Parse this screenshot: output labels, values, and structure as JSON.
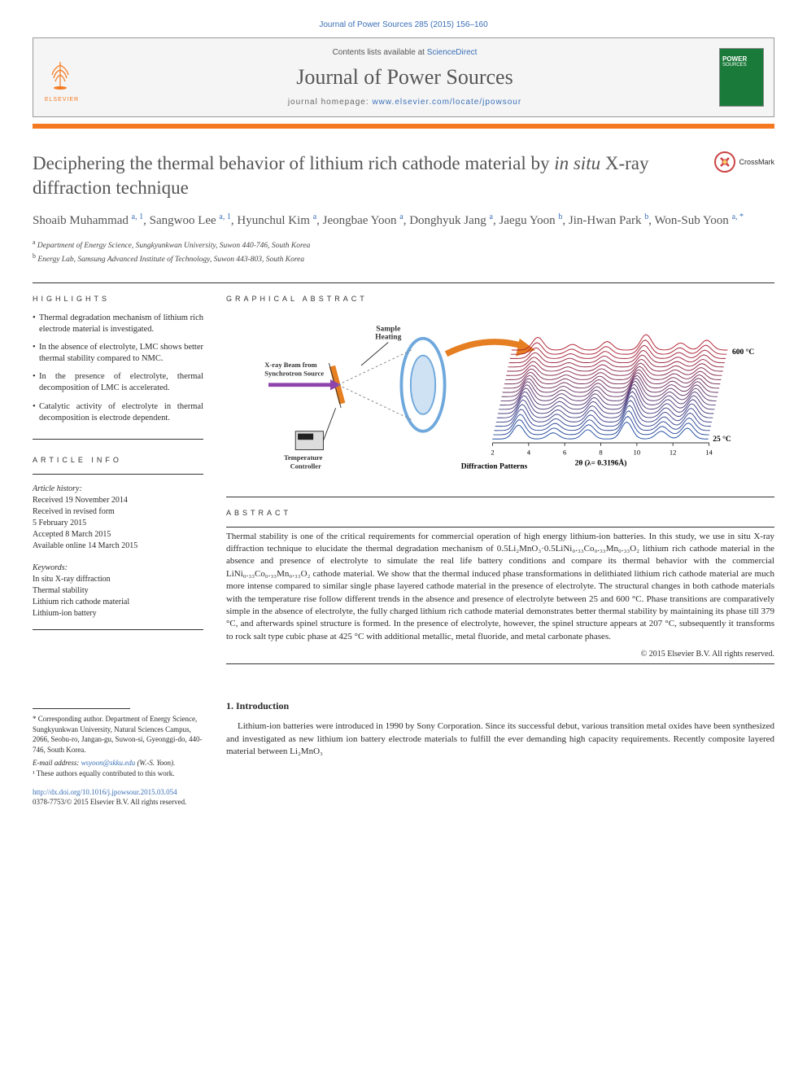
{
  "header": {
    "journal_ref": "Journal of Power Sources 285 (2015) 156–160",
    "contents_avail": "Contents lists available at ",
    "sciencedirect": "ScienceDirect",
    "journal_title": "Journal of Power Sources",
    "homepage_label": "journal homepage: ",
    "homepage_url": "www.elsevier.com/locate/jpowsour",
    "elsevier": "ELSEVIER",
    "cover_label_top": "POWER",
    "cover_label_bottom": "SOURCES"
  },
  "crossmark": "CrossMark",
  "title_pre": "Deciphering the thermal behavior of lithium rich cathode material by ",
  "title_italic": "in situ",
  "title_post": " X-ray diffraction technique",
  "authors_html": "Shoaib Muhammad <sup>a, 1</sup>, Sangwoo Lee <sup>a, 1</sup>, Hyunchul Kim <sup>a</sup>, Jeongbae Yoon <sup>a</sup>, Donghyuk Jang <sup>a</sup>, Jaegu Yoon <sup>b</sup>, Jin-Hwan Park <sup>b</sup>, Won-Sub Yoon <sup>a, *</sup>",
  "affiliations": [
    "a Department of Energy Science, Sungkyunkwan University, Suwon 440-746, South Korea",
    "b Energy Lab, Samsung Advanced Institute of Technology, Suwon 443-803, South Korea"
  ],
  "highlights_header": "HIGHLIGHTS",
  "highlights": [
    "Thermal degradation mechanism of lithium rich electrode material is investigated.",
    "In the absence of electrolyte, LMC shows better thermal stability compared to NMC.",
    "In the presence of electrolyte, thermal decomposition of LMC is accelerated.",
    "Catalytic activity of electrolyte in thermal decomposition is electrode dependent."
  ],
  "ga_header": "GRAPHICAL ABSTRACT",
  "ga": {
    "labels": {
      "sample": "Sample Heating",
      "xray": "X-ray Beam from Synchrotron Source",
      "temp": "Temperature Controller",
      "diff": "Diffraction Patterns",
      "xaxis": "2θ (λ= 0.3196Å)",
      "t_high": "600 °C",
      "t_low": "25 °C"
    },
    "xticks": [
      "2",
      "4",
      "6",
      "8",
      "10",
      "12",
      "14"
    ],
    "colors": {
      "ellipse_outer": "#6fa8dc",
      "ellipse_inner": "#cfe2f3",
      "beam": "#8e44ad",
      "sample": "#e67e22",
      "arrow": "#e67e22",
      "pattern_low": "#1f4aa0",
      "pattern_high": "#b01e2e"
    }
  },
  "article_info_header": "ARTICLE INFO",
  "article_info": {
    "history_label": "Article history:",
    "lines": [
      "Received 19 November 2014",
      "Received in revised form",
      "5 February 2015",
      "Accepted 8 March 2015",
      "Available online 14 March 2015"
    ],
    "keywords_label": "Keywords:",
    "keywords": [
      "In situ X-ray diffraction",
      "Thermal stability",
      "Lithium rich cathode material",
      "Lithium-ion battery"
    ]
  },
  "abstract_header": "ABSTRACT",
  "abstract": "Thermal stability is one of the critical requirements for commercial operation of high energy lithium-ion batteries. In this study, we use in situ X-ray diffraction technique to elucidate the thermal degradation mechanism of 0.5Li₂MnO₃·0.5LiNi₀.₃₃Co₀.₃₃Mn₀.₃₃O₂ lithium rich cathode material in the absence and presence of electrolyte to simulate the real life battery conditions and compare its thermal behavior with the commercial LiNi₀.₃₃Co₀.₃₃Mn₀.₃₃O₂ cathode material. We show that the thermal induced phase transformations in delithiated lithium rich cathode material are much more intense compared to similar single phase layered cathode material in the presence of electrolyte. The structural changes in both cathode materials with the temperature rise follow different trends in the absence and presence of electrolyte between 25 and 600 °C. Phase transitions are comparatively simple in the absence of electrolyte, the fully charged lithium rich cathode material demonstrates better thermal stability by maintaining its phase till 379 °C, and afterwards spinel structure is formed. In the presence of electrolyte, however, the spinel structure appears at 207 °C, subsequently it transforms to rock salt type cubic phase at 425 °C with additional metallic, metal fluoride, and metal carbonate phases.",
  "copyright": "© 2015 Elsevier B.V. All rights reserved.",
  "intro": {
    "heading": "1. Introduction",
    "text": "Lithium-ion batteries were introduced in 1990 by Sony Corporation. Since its successful debut, various transition metal oxides have been synthesized and investigated as new lithium ion battery electrode materials to fulfill the ever demanding high capacity requirements. Recently composite layered material between Li₂MnO₃"
  },
  "footer": {
    "corr": "* Corresponding author. Department of Energy Science, Sungkyunkwan University, Natural Sciences Campus, 2066, Seobu-ro, Jangan-gu, Suwon-si, Gyeonggi-do, 440-746, South Korea.",
    "email_label": "E-mail address: ",
    "email": "wsyoon@skku.edu",
    "email_suffix": " (W.-S. Yoon).",
    "contrib": "¹ These authors equally contributed to this work.",
    "doi": "http://dx.doi.org/10.1016/j.jpowsour.2015.03.054",
    "issn": "0378-7753/© 2015 Elsevier B.V. All rights reserved."
  }
}
